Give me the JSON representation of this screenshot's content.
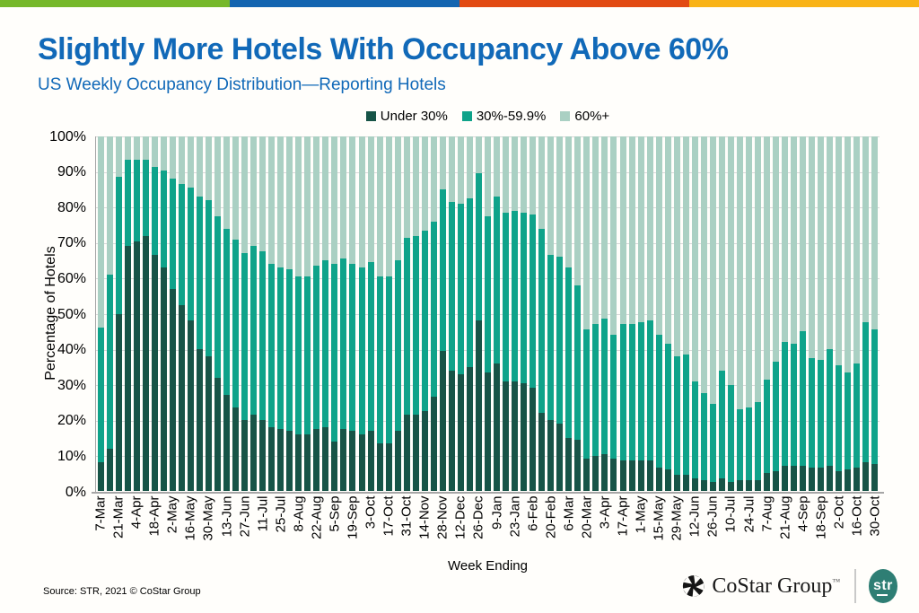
{
  "stripe_colors": [
    "#76b82a",
    "#1465b0",
    "#e24a12",
    "#f9b316"
  ],
  "header": {
    "title": "Slightly More Hotels With Occupancy Above 60%",
    "subtitle": "US Weekly Occupancy Distribution—Reporting Hotels"
  },
  "chart_data": {
    "type": "bar",
    "subtype": "stacked-100-percent",
    "title": "US Weekly Occupancy Distribution—Reporting Hotels",
    "xlabel": "Week Ending",
    "ylabel": "Percentage of Hotels",
    "ylim": [
      0,
      100
    ],
    "grid": "horizontal",
    "legend_position": "top-center",
    "x_label_every": 2,
    "y_ticks": [
      "0%",
      "10%",
      "20%",
      "30%",
      "40%",
      "50%",
      "60%",
      "70%",
      "80%",
      "90%",
      "100%"
    ],
    "x": [
      "7-Mar",
      "14-Mar",
      "21-Mar",
      "28-Mar",
      "4-Apr",
      "11-Apr",
      "18-Apr",
      "25-Apr",
      "2-May",
      "9-May",
      "16-May",
      "23-May",
      "30-May",
      "6-Jun",
      "13-Jun",
      "20-Jun",
      "27-Jun",
      "4-Jul",
      "11-Jul",
      "18-Jul",
      "25-Jul",
      "1-Aug",
      "8-Aug",
      "15-Aug",
      "22-Aug",
      "29-Aug",
      "5-Sep",
      "12-Sep",
      "19-Sep",
      "26-Sep",
      "3-Oct",
      "10-Oct",
      "17-Oct",
      "24-Oct",
      "31-Oct",
      "7-Nov",
      "14-Nov",
      "21-Nov",
      "28-Nov",
      "5-Dec",
      "12-Dec",
      "19-Dec",
      "26-Dec",
      "2-Jan",
      "9-Jan",
      "16-Jan",
      "23-Jan",
      "30-Jan",
      "6-Feb",
      "13-Feb",
      "20-Feb",
      "27-Feb",
      "6-Mar",
      "13-Mar",
      "20-Mar",
      "27-Mar",
      "3-Apr",
      "10-Apr",
      "17-Apr",
      "24-Apr",
      "1-May",
      "8-May",
      "15-May",
      "22-May",
      "29-May",
      "5-Jun",
      "12-Jun",
      "19-Jun",
      "26-Jun",
      "3-Jul",
      "10-Jul",
      "17-Jul",
      "24-Jul",
      "31-Jul",
      "7-Aug",
      "14-Aug",
      "21-Aug",
      "28-Aug",
      "4-Sep",
      "11-Sep",
      "18-Sep",
      "25-Sep",
      "2-Oct",
      "9-Oct",
      "16-Oct",
      "23-Oct",
      "30-Oct"
    ],
    "series": [
      {
        "name": "Under 30%",
        "color": "#175447",
        "values": [
          8,
          12,
          50,
          69,
          70.5,
          72,
          66.5,
          63,
          57,
          52.5,
          48,
          40,
          38,
          32,
          27,
          23.5,
          20,
          21.5,
          20,
          18,
          17.5,
          17,
          16,
          16,
          17.5,
          18,
          14,
          17.5,
          17,
          16,
          17,
          13.5,
          13.5,
          17,
          21.5,
          21.5,
          22.5,
          26.5,
          39.5,
          34,
          33,
          35,
          48,
          33.5,
          36,
          31,
          31,
          30.5,
          29,
          22,
          20,
          19,
          15,
          14.5,
          9,
          10,
          10.5,
          9,
          8.5,
          8.5,
          8.5,
          8.5,
          6.5,
          6,
          4.5,
          4.5,
          3.5,
          3,
          2.5,
          3.5,
          2.5,
          3,
          3,
          3,
          5,
          5.5,
          7,
          7,
          7,
          6.5,
          6.5,
          7,
          5.5,
          6,
          6.5,
          8,
          7.5
        ]
      },
      {
        "name": "30%-59.9%",
        "color": "#0fa38a",
        "values": [
          38,
          49,
          38.5,
          24.5,
          23,
          21.5,
          25,
          27.5,
          31,
          34,
          37.5,
          43,
          44,
          45.5,
          47,
          47.5,
          47,
          47.5,
          47.5,
          46,
          45.5,
          45.5,
          44.5,
          44.5,
          46,
          47,
          50,
          48,
          47,
          47,
          47.5,
          47,
          47,
          48,
          50,
          50.5,
          51,
          49.5,
          45.5,
          47.5,
          48,
          47.5,
          41.5,
          44,
          47,
          47.5,
          48,
          48,
          49,
          52,
          46.5,
          47,
          48,
          43.5,
          36.5,
          37,
          38,
          35,
          38.5,
          38.5,
          39,
          39.5,
          37.5,
          35.5,
          33.5,
          34,
          27.5,
          24.5,
          22,
          30.5,
          27.5,
          20,
          20.5,
          22,
          26.5,
          31,
          35,
          34.5,
          38,
          31,
          30.5,
          33,
          30,
          27.5,
          29.5,
          39.5,
          38
        ]
      },
      {
        "name": "60%+",
        "color": "#aad0c3",
        "values": [
          54,
          39,
          11.5,
          6.5,
          6.5,
          6.5,
          8.5,
          9.5,
          12,
          13.5,
          14.5,
          17,
          18,
          22.5,
          26,
          29,
          33,
          31,
          32.5,
          36,
          37,
          37.5,
          39.5,
          39.5,
          36.5,
          35,
          36,
          34.5,
          36,
          37,
          35.5,
          39.5,
          39.5,
          35,
          28.5,
          28,
          26.5,
          24,
          15,
          18.5,
          19,
          17.5,
          10.5,
          22.5,
          17,
          21.5,
          21,
          21.5,
          22,
          26,
          33.5,
          34,
          37,
          42,
          54.5,
          53,
          51.5,
          56,
          53,
          53,
          52.5,
          52,
          56,
          58.5,
          62,
          61.5,
          69,
          72.5,
          75.5,
          66,
          70,
          77,
          76.5,
          75,
          68.5,
          63.5,
          58,
          58.5,
          55,
          62.5,
          63,
          60,
          64.5,
          66.5,
          64,
          52.5,
          54.5
        ]
      }
    ]
  },
  "footer": {
    "source": "Source: STR, 2021 © CoStar Group",
    "brand": "CoStar Group",
    "brand_tm": "™",
    "str_logo": "str"
  }
}
